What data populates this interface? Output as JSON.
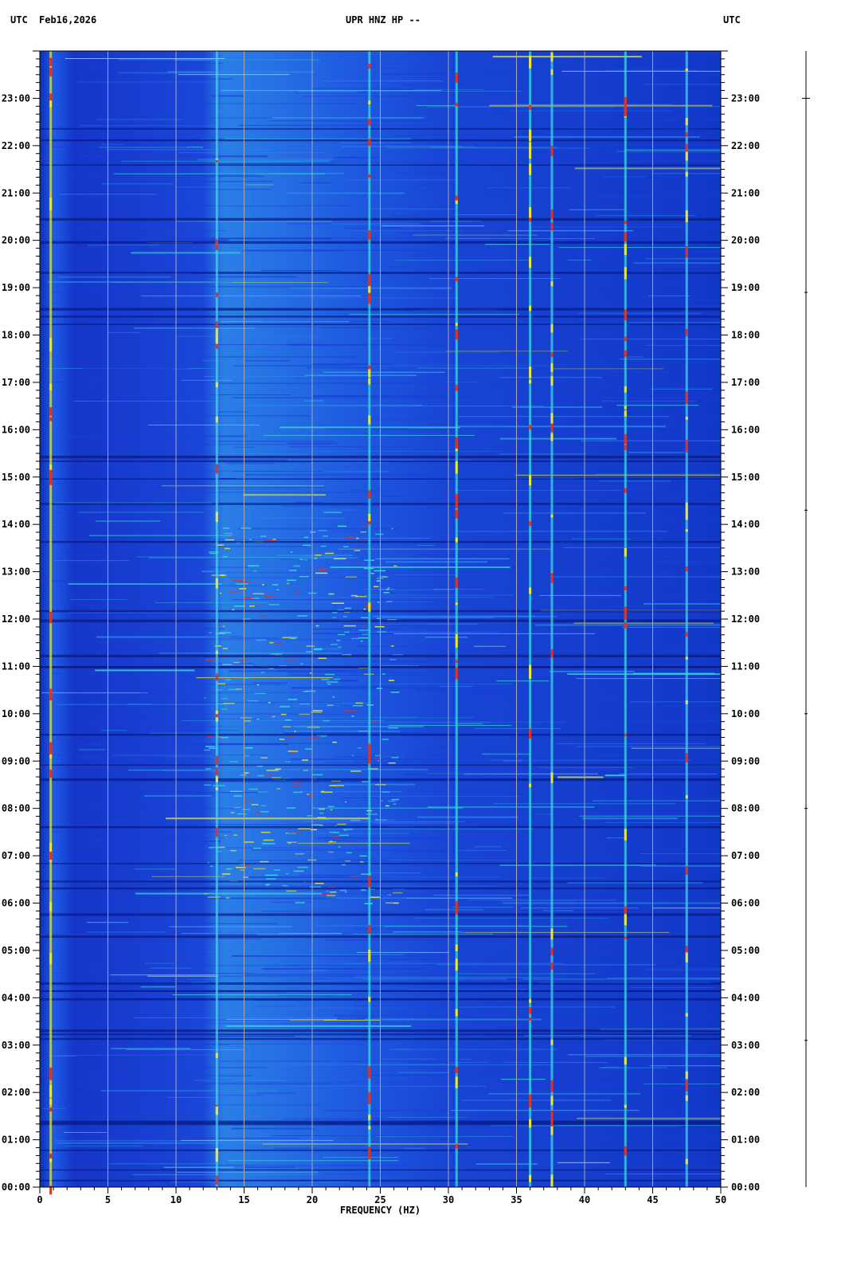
{
  "header": {
    "left_tz": "UTC",
    "date": "Feb16,2026",
    "station": "UPR HNZ HP --",
    "right_tz": "UTC"
  },
  "chart_data": {
    "type": "heatmap",
    "title": "UPR HNZ HP --",
    "xlabel": "FREQUENCY (HZ)",
    "ylabel": "UTC",
    "xlim": [
      0,
      50
    ],
    "x_ticks": [
      0,
      5,
      10,
      15,
      20,
      25,
      30,
      35,
      40,
      45,
      50
    ],
    "y_ticks": [
      "00:00",
      "01:00",
      "02:00",
      "03:00",
      "04:00",
      "05:00",
      "06:00",
      "07:00",
      "08:00",
      "09:00",
      "10:00",
      "11:00",
      "12:00",
      "13:00",
      "14:00",
      "15:00",
      "16:00",
      "17:00",
      "18:00",
      "19:00",
      "20:00",
      "21:00",
      "22:00",
      "23:00"
    ],
    "ylim_hours": [
      0,
      24
    ],
    "colormap": [
      "#0a1f9a",
      "#1a3fd6",
      "#2a86e8",
      "#39d9e0",
      "#e8e832",
      "#e03020"
    ],
    "persistent_lines_hz": [
      0.8,
      13,
      24.2,
      30.6,
      36,
      37.6,
      43,
      47.5
    ],
    "grid": true
  }
}
